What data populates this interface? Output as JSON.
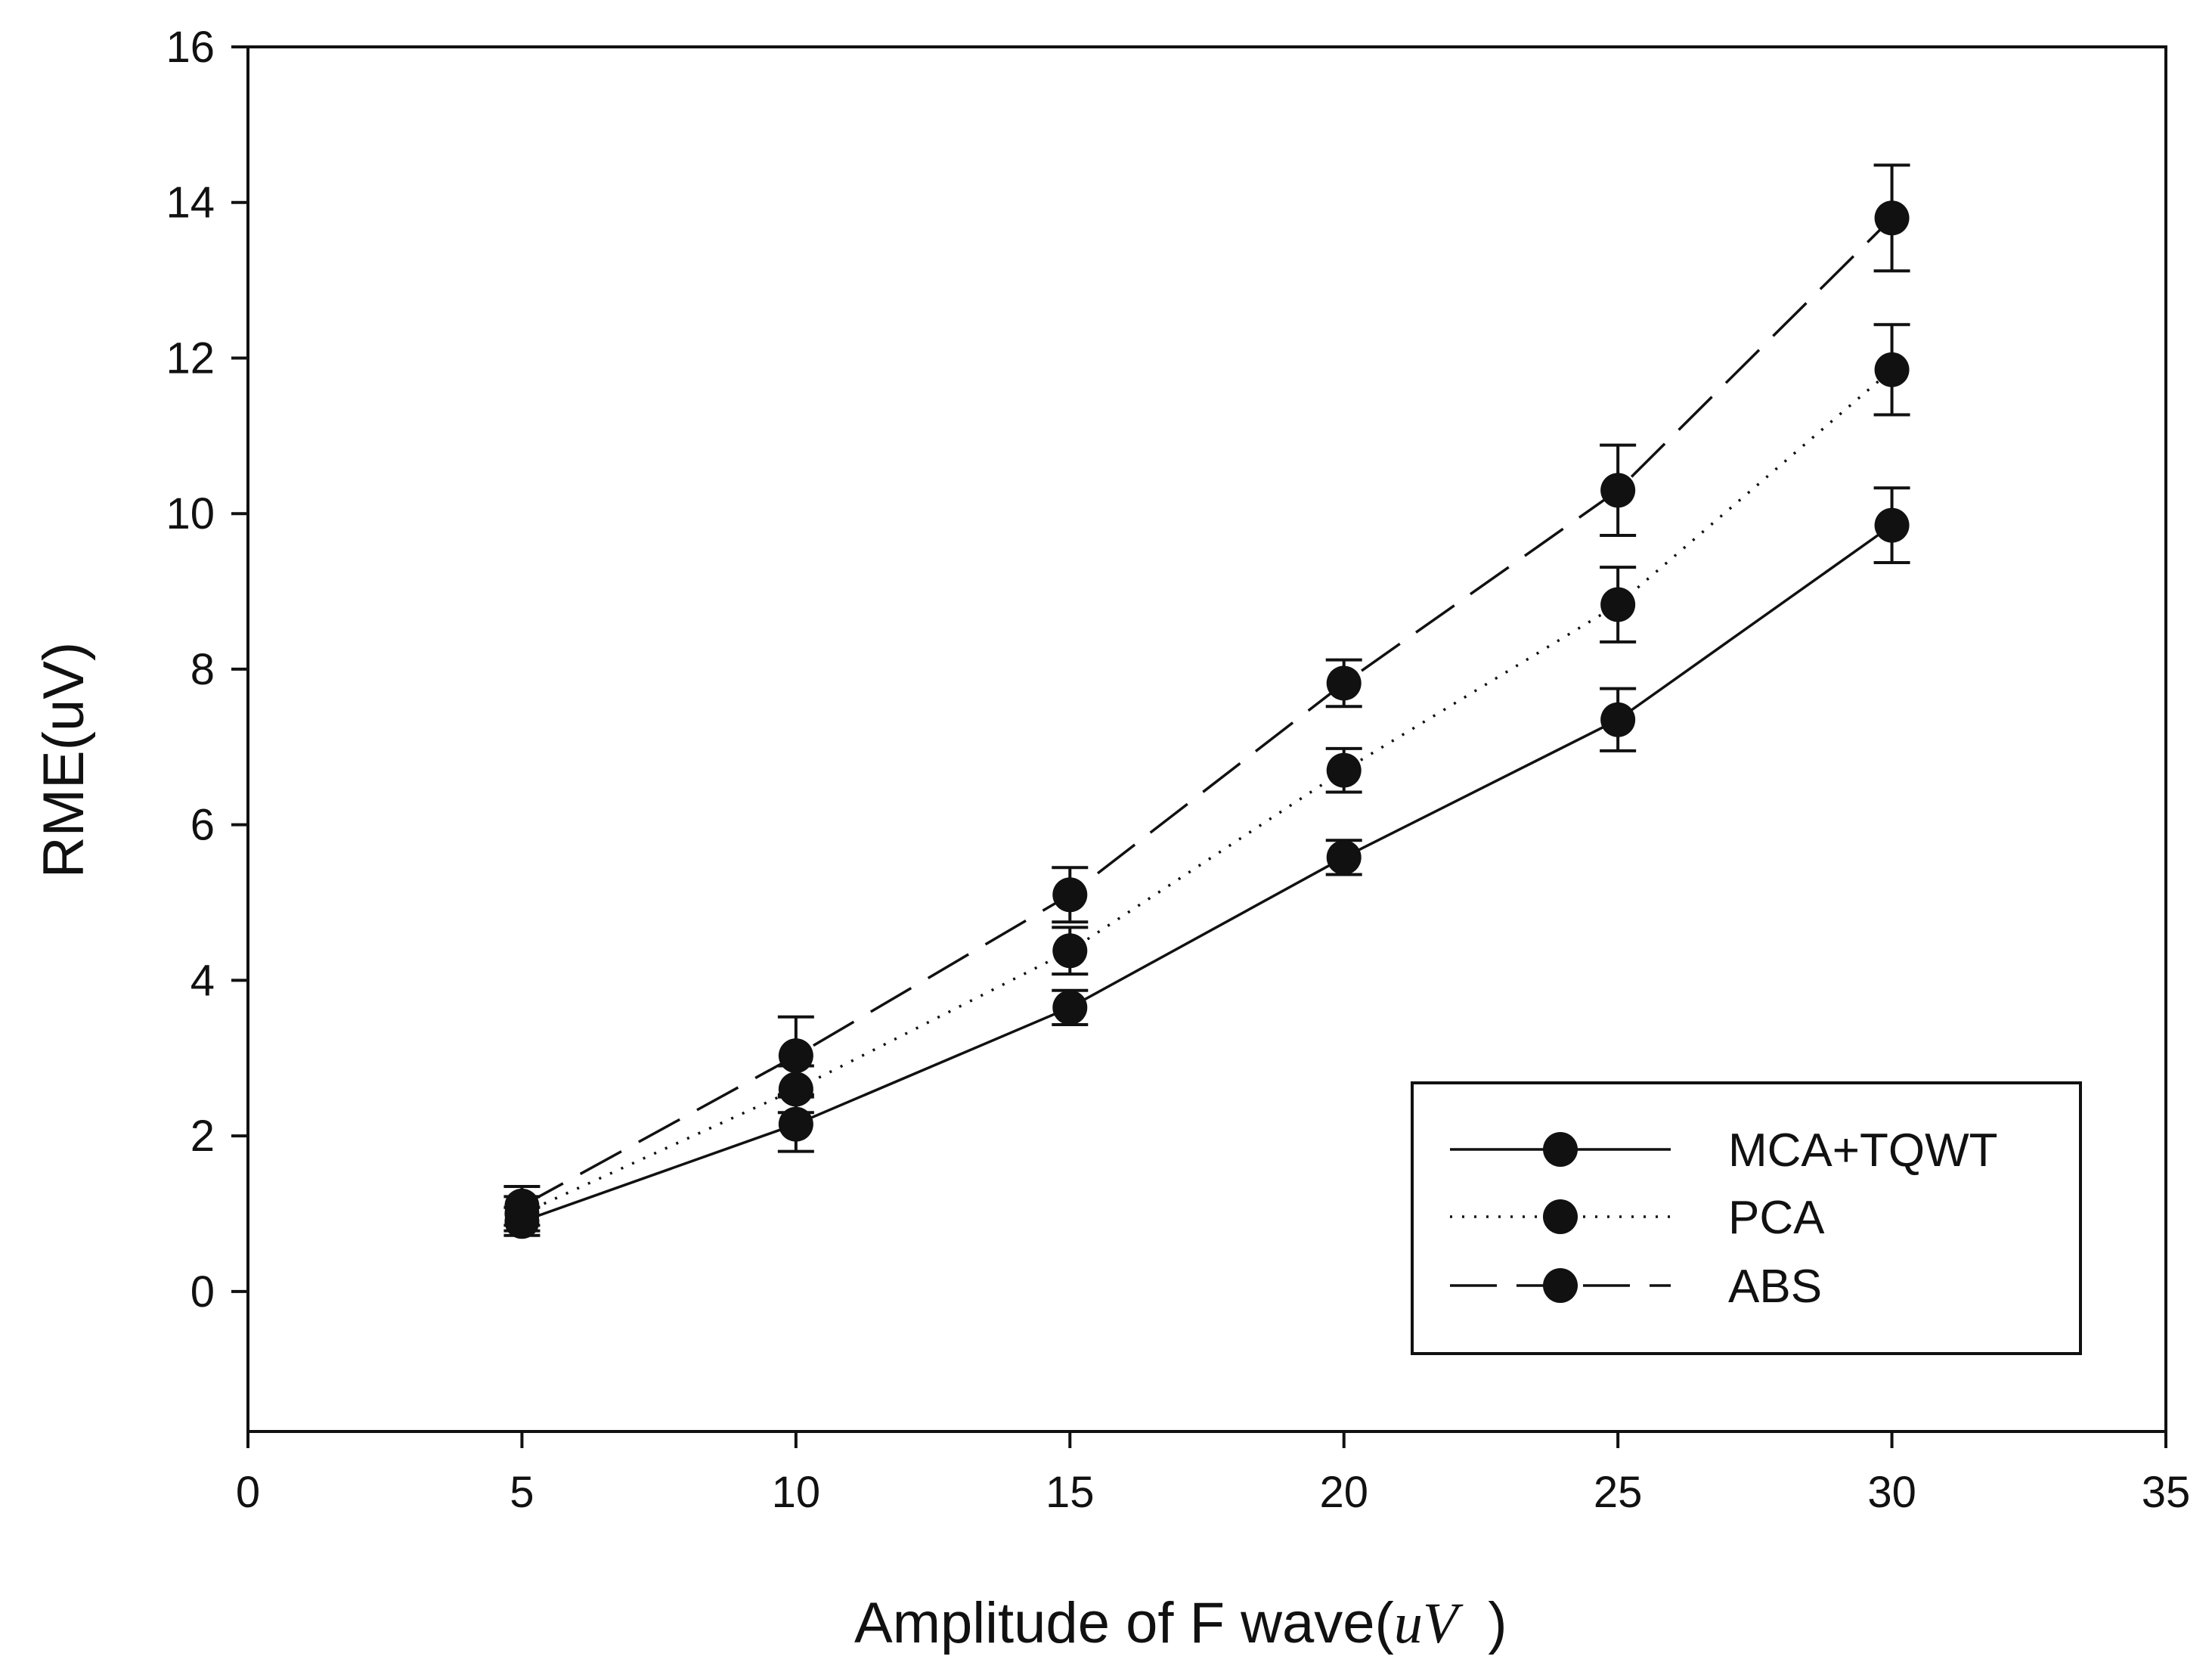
{
  "chart_data": {
    "type": "line",
    "title": "",
    "xlabel": "Amplitude of F wave(",
    "xlabel_unit": "uV",
    "xlabel_close": ")",
    "ylabel": "RME(uV)",
    "xlim": [
      0,
      35
    ],
    "ylim": [
      -1.8,
      16
    ],
    "xticks": [
      "0",
      "5",
      "10",
      "15",
      "20",
      "25",
      "30",
      "35"
    ],
    "yticks": [
      "0",
      "2",
      "4",
      "6",
      "8",
      "10",
      "12",
      "14",
      "16"
    ],
    "grid": false,
    "legend_position": "bottom-right",
    "x": [
      5,
      10,
      15,
      20,
      25,
      30
    ],
    "series": [
      {
        "name": "MCA+TQWT",
        "dash": "solid",
        "values": [
          0.9,
          2.15,
          3.65,
          5.58,
          7.35,
          9.85
        ],
        "errors": [
          0.18,
          0.35,
          0.22,
          0.22,
          0.4,
          0.48
        ]
      },
      {
        "name": "PCA",
        "dash": "dotted",
        "values": [
          1.0,
          2.6,
          4.38,
          6.7,
          8.83,
          11.85
        ],
        "errors": [
          0.22,
          0.3,
          0.3,
          0.28,
          0.48,
          0.58
        ]
      },
      {
        "name": "ABS",
        "dash": "dashed",
        "values": [
          1.1,
          3.03,
          5.1,
          7.82,
          10.3,
          13.8
        ],
        "errors": [
          0.25,
          0.5,
          0.35,
          0.3,
          0.58,
          0.68
        ]
      }
    ],
    "colors": {
      "line": "#111111",
      "marker": "#111111",
      "frame": "#111111"
    }
  }
}
